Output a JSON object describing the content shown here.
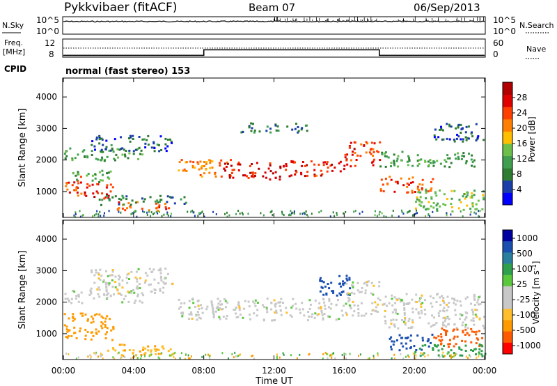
{
  "header": {
    "station": "Pykkvibaer (fitACF)",
    "beam": "Beam 07",
    "date": "06/Sep/2013"
  },
  "labels": {
    "nsky": "N.Sky",
    "freq_line1": "Freq.",
    "freq_line2": "[MHz]",
    "cpid": "CPID",
    "nsearch": "N.Search",
    "nave": "Nave",
    "mode": "normal (fast stereo) 153"
  },
  "noise_axis": {
    "top": "10^5",
    "bottom": "10^0"
  },
  "freq_axis": {
    "left_ticks": [
      "12",
      "8"
    ],
    "right_ticks": [
      "60",
      "0"
    ]
  },
  "colors": {
    "power": [
      "#0000ff",
      "#1a3fa8",
      "#2e7d32",
      "#3f9f4f",
      "#6cc04a",
      "#ffbf00",
      "#ff7f00",
      "#ff4000",
      "#e00000",
      "#b00000"
    ],
    "velocity": [
      "#ff0000",
      "#ff5a00",
      "#ff9a00",
      "#ffbe2a",
      "#c8c8c8",
      "#c8c8c8",
      "#5ac83c",
      "#2e9f4c",
      "#2a7f9f",
      "#1a4fb0",
      "#0000a0"
    ]
  },
  "chart_data": [
    {
      "type": "heatmap",
      "name": "power",
      "ylabel": "Slant Range [km]",
      "xlabel": "",
      "xlim": [
        0,
        24
      ],
      "ylim": [
        180,
        4600
      ],
      "yticks": [
        1000,
        2000,
        3000,
        4000
      ],
      "colorbar_label": "Power [dB]",
      "colorbar_ticks": [
        4,
        8,
        12,
        16,
        20,
        24,
        28
      ],
      "clim": [
        0,
        32
      ],
      "regions": [
        {
          "t0": 0.0,
          "t1": 1.0,
          "r0": 900,
          "r1": 1500,
          "v": 24
        },
        {
          "t0": 1.0,
          "t1": 2.8,
          "r0": 800,
          "r1": 1300,
          "v": 27
        },
        {
          "t0": 0.5,
          "t1": 2.7,
          "r0": 1300,
          "r1": 1700,
          "v": 12
        },
        {
          "t0": 0.0,
          "t1": 4.5,
          "r0": 2000,
          "r1": 2400,
          "v": 11
        },
        {
          "t0": 1.5,
          "t1": 6.2,
          "r0": 2300,
          "r1": 2800,
          "v": 6
        },
        {
          "t0": 3.0,
          "t1": 6.0,
          "r0": 400,
          "r1": 700,
          "v": 23
        },
        {
          "t0": 2.0,
          "t1": 7.0,
          "r0": 600,
          "r1": 900,
          "v": 9
        },
        {
          "t0": 6.5,
          "t1": 9.5,
          "r0": 1500,
          "r1": 2050,
          "v": 21
        },
        {
          "t0": 9.0,
          "t1": 12.5,
          "r0": 1400,
          "r1": 1950,
          "v": 27
        },
        {
          "t0": 12.5,
          "t1": 16.0,
          "r0": 1500,
          "r1": 2000,
          "v": 26
        },
        {
          "t0": 16.0,
          "t1": 18.0,
          "r0": 1800,
          "r1": 2600,
          "v": 25
        },
        {
          "t0": 10.0,
          "t1": 14.0,
          "r0": 2900,
          "r1": 3200,
          "v": 7
        },
        {
          "t0": 18.0,
          "t1": 21.0,
          "r0": 1000,
          "r1": 1500,
          "v": 24
        },
        {
          "t0": 18.0,
          "t1": 23.5,
          "r0": 1800,
          "r1": 2300,
          "v": 11
        },
        {
          "t0": 20.0,
          "t1": 24.0,
          "r0": 400,
          "r1": 1100,
          "v": 14
        },
        {
          "t0": 21.0,
          "t1": 24.0,
          "r0": 2600,
          "r1": 3200,
          "v": 5
        }
      ]
    },
    {
      "type": "heatmap",
      "name": "velocity",
      "ylabel": "Slant Range [km]",
      "xlabel": "Time UT",
      "xlim": [
        0,
        24
      ],
      "ylim": [
        180,
        4600
      ],
      "yticks": [
        1000,
        2000,
        3000,
        4000
      ],
      "xticks": [
        "00:00",
        "04:00",
        "08:00",
        "12:00",
        "16:00",
        "20:00",
        "00:00"
      ],
      "colorbar_label": "Velocity [m s^-1]",
      "colorbar_ticks": [
        -1000,
        -500,
        -100,
        -25,
        25,
        100,
        500,
        1000
      ],
      "regions": [
        {
          "t0": 0.0,
          "t1": 2.8,
          "r0": 800,
          "r1": 1700,
          "v": -150
        },
        {
          "t0": 0.0,
          "t1": 4.5,
          "r0": 2000,
          "r1": 2400,
          "v": 0
        },
        {
          "t0": 1.5,
          "t1": 6.2,
          "r0": 2300,
          "r1": 3100,
          "v": 0
        },
        {
          "t0": 2.5,
          "t1": 6.5,
          "r0": 350,
          "r1": 700,
          "v": -80
        },
        {
          "t0": 6.5,
          "t1": 16.0,
          "r0": 1450,
          "r1": 2150,
          "v": 0
        },
        {
          "t0": 14.5,
          "t1": 16.5,
          "r0": 2200,
          "r1": 2900,
          "v": 600
        },
        {
          "t0": 16.0,
          "t1": 18.0,
          "r0": 1600,
          "r1": 2700,
          "v": 0
        },
        {
          "t0": 18.0,
          "t1": 24.0,
          "r0": 1200,
          "r1": 2300,
          "v": 0
        },
        {
          "t0": 18.5,
          "t1": 21.0,
          "r0": 500,
          "r1": 1000,
          "v": 700
        },
        {
          "t0": 21.0,
          "t1": 24.0,
          "r0": 600,
          "r1": 1200,
          "v": -700
        },
        {
          "t0": 20.0,
          "t1": 24.0,
          "r0": 300,
          "r1": 700,
          "v": 150
        }
      ]
    }
  ]
}
